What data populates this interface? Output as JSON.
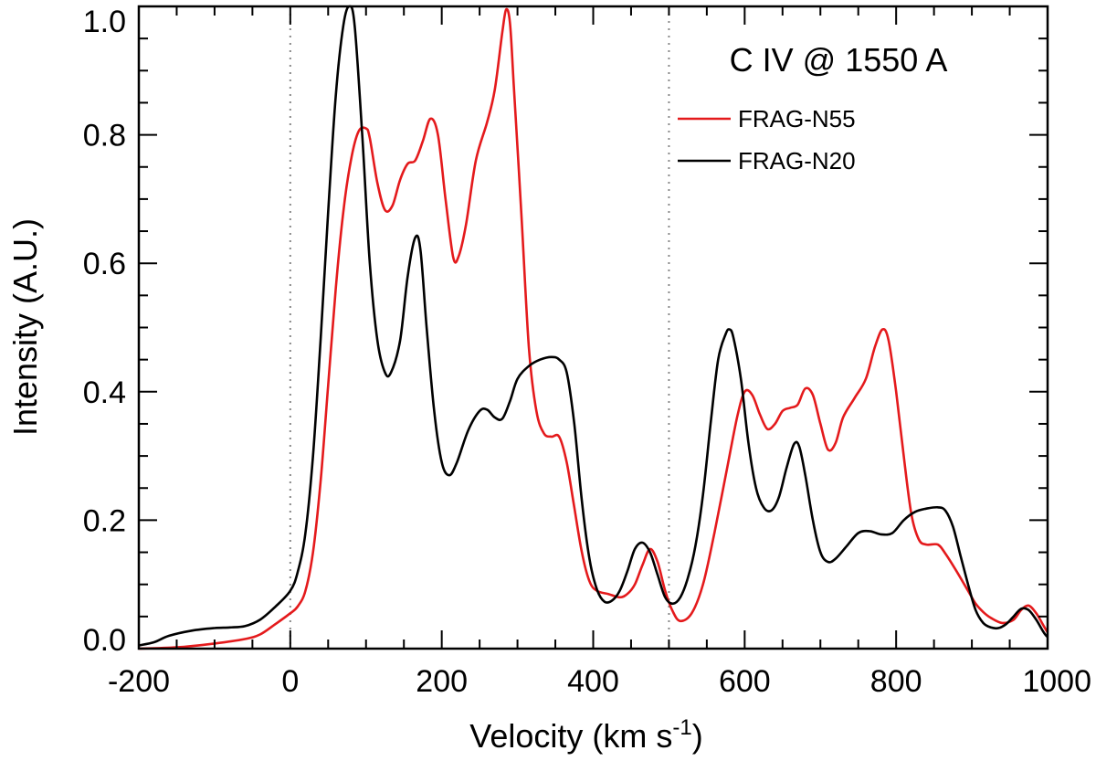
{
  "chart_data": {
    "type": "line",
    "title": "C IV @ 1550 A",
    "xlabel": "Velocity (km s",
    "xlabel_sup": "-1",
    "xlabel_close": ")",
    "ylabel": "Intensity (A.U.)",
    "xlim": [
      -200,
      1000
    ],
    "ylim": [
      0,
      1.0
    ],
    "xticks": [
      -200,
      0,
      200,
      400,
      600,
      800,
      1000
    ],
    "xtick_labels": [
      "-200",
      "0",
      "200",
      "400",
      "600",
      "800",
      "1000"
    ],
    "yticks": [
      0,
      0.2,
      0.4,
      0.6,
      0.8,
      1.0
    ],
    "ytick_labels": [
      "0.0",
      "0.2",
      "0.4",
      "0.6",
      "0.8",
      "1.0"
    ],
    "reference_lines_x": [
      0,
      500
    ],
    "legend_position": "top-right",
    "series": [
      {
        "name": "FRAG-N55",
        "color": "#e41a1c",
        "points": [
          [
            -200,
            0.0
          ],
          [
            -150,
            0.002
          ],
          [
            -100,
            0.008
          ],
          [
            -60,
            0.015
          ],
          [
            -40,
            0.022
          ],
          [
            -20,
            0.038
          ],
          [
            0,
            0.055
          ],
          [
            10,
            0.066
          ],
          [
            20,
            0.09
          ],
          [
            30,
            0.15
          ],
          [
            40,
            0.26
          ],
          [
            50,
            0.41
          ],
          [
            60,
            0.56
          ],
          [
            70,
            0.68
          ],
          [
            80,
            0.76
          ],
          [
            90,
            0.805
          ],
          [
            100,
            0.81
          ],
          [
            105,
            0.795
          ],
          [
            115,
            0.725
          ],
          [
            125,
            0.683
          ],
          [
            135,
            0.69
          ],
          [
            145,
            0.73
          ],
          [
            155,
            0.755
          ],
          [
            165,
            0.76
          ],
          [
            175,
            0.79
          ],
          [
            185,
            0.825
          ],
          [
            195,
            0.8
          ],
          [
            205,
            0.7
          ],
          [
            215,
            0.61
          ],
          [
            222,
            0.61
          ],
          [
            232,
            0.66
          ],
          [
            245,
            0.76
          ],
          [
            260,
            0.82
          ],
          [
            270,
            0.87
          ],
          [
            280,
            0.96
          ],
          [
            285,
            0.995
          ],
          [
            290,
            0.975
          ],
          [
            295,
            0.88
          ],
          [
            305,
            0.68
          ],
          [
            315,
            0.47
          ],
          [
            325,
            0.37
          ],
          [
            335,
            0.335
          ],
          [
            345,
            0.33
          ],
          [
            355,
            0.33
          ],
          [
            365,
            0.29
          ],
          [
            375,
            0.22
          ],
          [
            385,
            0.15
          ],
          [
            395,
            0.105
          ],
          [
            405,
            0.09
          ],
          [
            420,
            0.085
          ],
          [
            435,
            0.08
          ],
          [
            445,
            0.085
          ],
          [
            455,
            0.1
          ],
          [
            465,
            0.13
          ],
          [
            475,
            0.155
          ],
          [
            485,
            0.135
          ],
          [
            495,
            0.09
          ],
          [
            505,
            0.058
          ],
          [
            515,
            0.043
          ],
          [
            530,
            0.055
          ],
          [
            545,
            0.1
          ],
          [
            560,
            0.18
          ],
          [
            575,
            0.27
          ],
          [
            590,
            0.36
          ],
          [
            600,
            0.4
          ],
          [
            610,
            0.395
          ],
          [
            620,
            0.365
          ],
          [
            630,
            0.342
          ],
          [
            640,
            0.35
          ],
          [
            650,
            0.37
          ],
          [
            660,
            0.375
          ],
          [
            670,
            0.38
          ],
          [
            680,
            0.405
          ],
          [
            690,
            0.395
          ],
          [
            700,
            0.35
          ],
          [
            710,
            0.31
          ],
          [
            720,
            0.32
          ],
          [
            730,
            0.36
          ],
          [
            745,
            0.39
          ],
          [
            760,
            0.42
          ],
          [
            772,
            0.47
          ],
          [
            782,
            0.497
          ],
          [
            790,
            0.48
          ],
          [
            800,
            0.4
          ],
          [
            810,
            0.3
          ],
          [
            820,
            0.21
          ],
          [
            830,
            0.17
          ],
          [
            840,
            0.162
          ],
          [
            855,
            0.162
          ],
          [
            865,
            0.148
          ],
          [
            880,
            0.12
          ],
          [
            895,
            0.09
          ],
          [
            905,
            0.07
          ],
          [
            915,
            0.057
          ],
          [
            925,
            0.048
          ],
          [
            940,
            0.04
          ],
          [
            955,
            0.045
          ],
          [
            965,
            0.06
          ],
          [
            975,
            0.067
          ],
          [
            985,
            0.055
          ],
          [
            995,
            0.035
          ],
          [
            1000,
            0.025
          ]
        ]
      },
      {
        "name": "FRAG-N20",
        "color": "#000000",
        "points": [
          [
            -200,
            0.005
          ],
          [
            -180,
            0.01
          ],
          [
            -160,
            0.02
          ],
          [
            -130,
            0.028
          ],
          [
            -100,
            0.032
          ],
          [
            -80,
            0.033
          ],
          [
            -60,
            0.035
          ],
          [
            -40,
            0.045
          ],
          [
            -20,
            0.065
          ],
          [
            0,
            0.09
          ],
          [
            10,
            0.12
          ],
          [
            20,
            0.18
          ],
          [
            30,
            0.3
          ],
          [
            40,
            0.48
          ],
          [
            50,
            0.68
          ],
          [
            60,
            0.86
          ],
          [
            70,
            0.97
          ],
          [
            78,
            1.0
          ],
          [
            85,
            0.97
          ],
          [
            95,
            0.8
          ],
          [
            105,
            0.6
          ],
          [
            115,
            0.48
          ],
          [
            125,
            0.43
          ],
          [
            133,
            0.43
          ],
          [
            145,
            0.48
          ],
          [
            155,
            0.58
          ],
          [
            165,
            0.64
          ],
          [
            172,
            0.62
          ],
          [
            180,
            0.5
          ],
          [
            190,
            0.37
          ],
          [
            200,
            0.29
          ],
          [
            210,
            0.27
          ],
          [
            220,
            0.29
          ],
          [
            235,
            0.34
          ],
          [
            250,
            0.37
          ],
          [
            260,
            0.372
          ],
          [
            270,
            0.36
          ],
          [
            280,
            0.358
          ],
          [
            290,
            0.385
          ],
          [
            300,
            0.42
          ],
          [
            315,
            0.44
          ],
          [
            330,
            0.45
          ],
          [
            345,
            0.454
          ],
          [
            355,
            0.45
          ],
          [
            365,
            0.43
          ],
          [
            375,
            0.35
          ],
          [
            385,
            0.23
          ],
          [
            395,
            0.14
          ],
          [
            405,
            0.092
          ],
          [
            415,
            0.073
          ],
          [
            425,
            0.075
          ],
          [
            435,
            0.09
          ],
          [
            445,
            0.12
          ],
          [
            455,
            0.155
          ],
          [
            465,
            0.165
          ],
          [
            475,
            0.15
          ],
          [
            485,
            0.115
          ],
          [
            495,
            0.08
          ],
          [
            505,
            0.07
          ],
          [
            515,
            0.08
          ],
          [
            525,
            0.11
          ],
          [
            535,
            0.16
          ],
          [
            545,
            0.24
          ],
          [
            555,
            0.35
          ],
          [
            565,
            0.45
          ],
          [
            575,
            0.49
          ],
          [
            580,
            0.497
          ],
          [
            585,
            0.485
          ],
          [
            595,
            0.42
          ],
          [
            605,
            0.32
          ],
          [
            615,
            0.25
          ],
          [
            625,
            0.22
          ],
          [
            635,
            0.215
          ],
          [
            645,
            0.235
          ],
          [
            655,
            0.28
          ],
          [
            665,
            0.318
          ],
          [
            672,
            0.315
          ],
          [
            680,
            0.27
          ],
          [
            690,
            0.2
          ],
          [
            700,
            0.15
          ],
          [
            710,
            0.135
          ],
          [
            720,
            0.14
          ],
          [
            735,
            0.16
          ],
          [
            750,
            0.18
          ],
          [
            765,
            0.183
          ],
          [
            780,
            0.178
          ],
          [
            795,
            0.18
          ],
          [
            810,
            0.2
          ],
          [
            825,
            0.213
          ],
          [
            840,
            0.218
          ],
          [
            855,
            0.22
          ],
          [
            865,
            0.215
          ],
          [
            875,
            0.19
          ],
          [
            885,
            0.145
          ],
          [
            895,
            0.1
          ],
          [
            905,
            0.06
          ],
          [
            915,
            0.04
          ],
          [
            925,
            0.033
          ],
          [
            935,
            0.032
          ],
          [
            945,
            0.038
          ],
          [
            955,
            0.05
          ],
          [
            965,
            0.062
          ],
          [
            975,
            0.06
          ],
          [
            985,
            0.045
          ],
          [
            995,
            0.025
          ],
          [
            1000,
            0.018
          ]
        ]
      }
    ]
  }
}
